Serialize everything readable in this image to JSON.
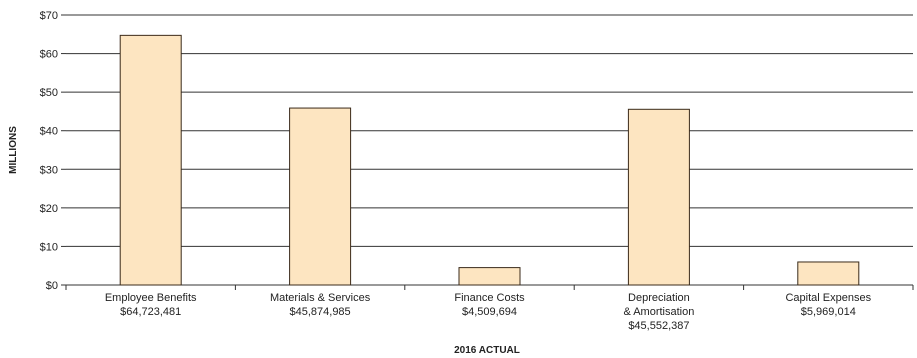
{
  "chart_data": {
    "type": "bar",
    "categories": [
      [
        "Employee Benefits",
        "$64,723,481"
      ],
      [
        "Materials & Services",
        "$45,874,985"
      ],
      [
        "Finance Costs",
        "$4,509,694"
      ],
      [
        "Depreciation",
        "& Amortisation",
        "$45,552,387"
      ],
      [
        "Capital Expenses",
        "$5,969,014"
      ]
    ],
    "values": [
      64.723481,
      45.874985,
      4.509694,
      45.552387,
      5.969014
    ],
    "xlabel": "2016 ACTUAL",
    "ylabel": "MILLIONS",
    "ylim": [
      0,
      70
    ],
    "yticks": [
      0,
      10,
      20,
      30,
      40,
      50,
      60,
      70
    ],
    "ytick_labels": [
      "$0",
      "$10",
      "$20",
      "$30",
      "$40",
      "$50",
      "$60",
      "$70"
    ],
    "grid": true,
    "colors": {
      "bar_fill": "#fde5c1",
      "bar_stroke": "#3a2a1a",
      "grid": "#333333"
    }
  }
}
